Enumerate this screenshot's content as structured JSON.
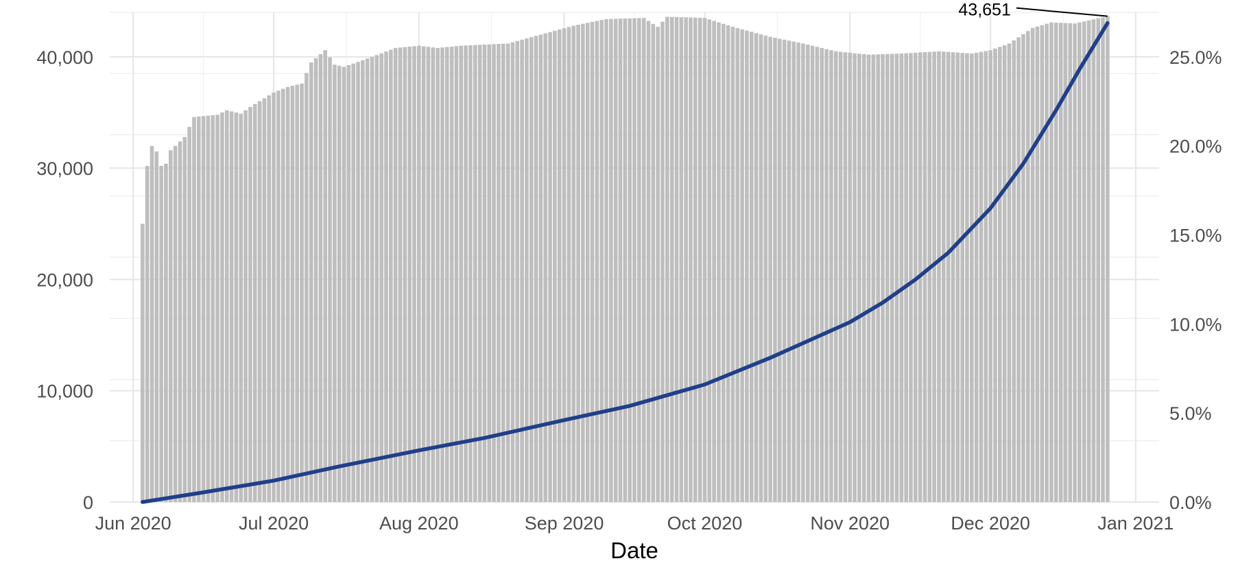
{
  "chart_data": {
    "type": "bar",
    "title": "",
    "xlabel": "Date",
    "ylabel": "",
    "y2label": "",
    "grid": true,
    "legend": "none",
    "x_ticks": [
      "Jun 2020",
      "Jul 2020",
      "Aug 2020",
      "Sep 2020",
      "Oct 2020",
      "Nov 2020",
      "Dec 2020",
      "Jan 2021"
    ],
    "x_range": [
      "2020-05-27",
      "2021-01-06"
    ],
    "ylim": [
      0,
      44000
    ],
    "y_ticks": [
      "0",
      "10,000",
      "20,000",
      "30,000",
      "40,000"
    ],
    "y2lim": [
      0,
      0.275
    ],
    "y2_ticks": [
      "0.0%",
      "5.0%",
      "10.0%",
      "15.0%",
      "20.0%",
      "25.0%"
    ],
    "bar_color": "#bebebe",
    "line_color": "#1f3f8a",
    "annotation": {
      "label": "43,651",
      "date": "2020-12-26",
      "value": 43651
    },
    "bar_series": {
      "start_date": "2020-06-03",
      "end_date": "2020-12-26",
      "keypoints": [
        [
          "2020-06-03",
          25000
        ],
        [
          "2020-06-04",
          30200
        ],
        [
          "2020-06-05",
          32000
        ],
        [
          "2020-06-06",
          31500
        ],
        [
          "2020-06-07",
          30200
        ],
        [
          "2020-06-08",
          30400
        ],
        [
          "2020-06-09",
          31600
        ],
        [
          "2020-06-10",
          32000
        ],
        [
          "2020-06-12",
          32800
        ],
        [
          "2020-06-14",
          34600
        ],
        [
          "2020-06-19",
          34800
        ],
        [
          "2020-06-21",
          35200
        ],
        [
          "2020-06-24",
          34900
        ],
        [
          "2020-06-26",
          35500
        ],
        [
          "2020-07-01",
          36800
        ],
        [
          "2020-07-04",
          37300
        ],
        [
          "2020-07-07",
          37600
        ],
        [
          "2020-07-09",
          39500
        ],
        [
          "2020-07-12",
          40600
        ],
        [
          "2020-07-14",
          39300
        ],
        [
          "2020-07-16",
          39100
        ],
        [
          "2020-07-18",
          39400
        ],
        [
          "2020-07-22",
          40000
        ],
        [
          "2020-07-27",
          40800
        ],
        [
          "2020-08-01",
          41000
        ],
        [
          "2020-08-05",
          40800
        ],
        [
          "2020-08-10",
          41000
        ],
        [
          "2020-08-20",
          41200
        ],
        [
          "2020-08-27",
          42000
        ],
        [
          "2020-09-03",
          42800
        ],
        [
          "2020-09-10",
          43400
        ],
        [
          "2020-09-18",
          43500
        ],
        [
          "2020-09-21",
          42700
        ],
        [
          "2020-09-23",
          43600
        ],
        [
          "2020-10-01",
          43500
        ],
        [
          "2020-10-07",
          42700
        ],
        [
          "2020-10-15",
          41800
        ],
        [
          "2020-10-22",
          41200
        ],
        [
          "2020-10-29",
          40500
        ],
        [
          "2020-11-05",
          40200
        ],
        [
          "2020-11-12",
          40300
        ],
        [
          "2020-11-20",
          40500
        ],
        [
          "2020-11-27",
          40300
        ],
        [
          "2020-12-01",
          40600
        ],
        [
          "2020-12-05",
          41200
        ],
        [
          "2020-12-10",
          42600
        ],
        [
          "2020-12-14",
          43100
        ],
        [
          "2020-12-19",
          43000
        ],
        [
          "2020-12-26",
          43651
        ]
      ]
    },
    "line_series": {
      "points": [
        [
          "2020-06-03",
          0.0
        ],
        [
          "2020-06-15",
          0.005
        ],
        [
          "2020-07-01",
          0.012
        ],
        [
          "2020-07-15",
          0.02
        ],
        [
          "2020-08-01",
          0.029
        ],
        [
          "2020-08-15",
          0.036
        ],
        [
          "2020-09-01",
          0.046
        ],
        [
          "2020-09-15",
          0.054
        ],
        [
          "2020-10-01",
          0.066
        ],
        [
          "2020-10-15",
          0.081
        ],
        [
          "2020-11-01",
          0.101
        ],
        [
          "2020-11-08",
          0.112
        ],
        [
          "2020-11-15",
          0.125
        ],
        [
          "2020-11-22",
          0.14
        ],
        [
          "2020-12-01",
          0.165
        ],
        [
          "2020-12-08",
          0.19
        ],
        [
          "2020-12-15",
          0.22
        ],
        [
          "2020-12-20",
          0.243
        ],
        [
          "2020-12-26",
          0.269
        ]
      ]
    }
  }
}
